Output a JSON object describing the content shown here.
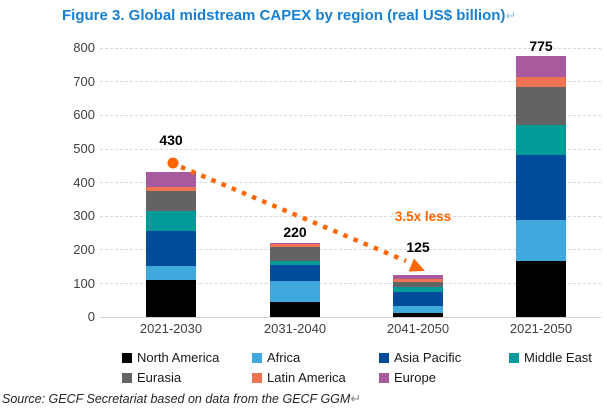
{
  "title": {
    "text": "Figure 3. Global midstream CAPEX by region (real US$ billion)",
    "eol_mark": "↵",
    "color": "#1780D2"
  },
  "source": {
    "text": "Source: GECF Secretariat based on data from the GECF GGM",
    "eol_mark": "↵"
  },
  "chart_data": {
    "type": "bar",
    "stacked": true,
    "title": "Figure 3. Global midstream CAPEX by region (real US$ billion)",
    "categories": [
      "2021-2030",
      "2031-2040",
      "2041-2050",
      "2021-2050"
    ],
    "series": [
      {
        "name": "North America",
        "color": "#000000",
        "values": [
          110,
          45,
          10,
          165
        ]
      },
      {
        "name": "Africa",
        "color": "#40A8DC",
        "values": [
          40,
          60,
          22,
          122
        ]
      },
      {
        "name": "Asia Pacific",
        "color": "#004C9B",
        "values": [
          105,
          50,
          40,
          195
        ]
      },
      {
        "name": "Middle East",
        "color": "#009B98",
        "values": [
          58,
          12,
          17,
          87
        ]
      },
      {
        "name": "Eurasia",
        "color": "#636363",
        "values": [
          62,
          40,
          13,
          115
        ]
      },
      {
        "name": "Latin America",
        "color": "#ED7352",
        "values": [
          10,
          8,
          10,
          28
        ]
      },
      {
        "name": "Europe",
        "color": "#A85A9E",
        "values": [
          45,
          5,
          13,
          63
        ]
      }
    ],
    "totals": [
      430,
      220,
      125,
      775
    ],
    "total_labels": [
      "430",
      "220",
      "125",
      "775"
    ],
    "ylim": [
      0,
      800
    ],
    "ytick_step": 100,
    "grid": "horizontal-dashed",
    "legend_position": "bottom",
    "legend_rows": [
      [
        "North America",
        "Africa",
        "Asia Pacific",
        "Middle East"
      ],
      [
        "Eurasia",
        "Latin America",
        "Europe"
      ]
    ],
    "annotation": {
      "text": "3.5x less",
      "color": "#FF6600",
      "arrow": {
        "type": "dotted",
        "color": "#FF6600",
        "from_category": "2021-2030",
        "to_category": "2041-2050",
        "start_marker": "circle",
        "end_marker": "arrowhead"
      }
    }
  }
}
